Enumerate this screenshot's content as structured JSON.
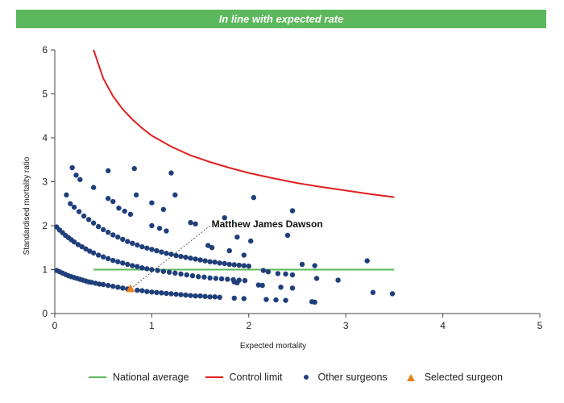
{
  "banner": {
    "text": "In line with expected rate",
    "color": "#5cb85c"
  },
  "chart_data": {
    "type": "scatter",
    "xlabel": "Expected mortality",
    "ylabel": "Standardised mortality ratio",
    "xlim": [
      0,
      5
    ],
    "ylim": [
      0,
      6
    ],
    "xticks": [
      "0",
      "1",
      "2",
      "3",
      "4",
      "5"
    ],
    "yticks": [
      "0",
      "1",
      "2",
      "3",
      "4",
      "5",
      "6"
    ],
    "grid": false,
    "legend_position": "bottom",
    "annotation": {
      "text": "Matthew James Dawson",
      "x": 1.6,
      "y": 2.0
    },
    "national_average": {
      "name": "National average",
      "color": "#5cb85c",
      "y": 1,
      "x": [
        0.4,
        3.5
      ]
    },
    "control_limit": {
      "name": "Control limit",
      "color": "#e02020",
      "points": [
        [
          0.4,
          6.0
        ],
        [
          0.5,
          5.35
        ],
        [
          0.6,
          4.95
        ],
        [
          0.7,
          4.65
        ],
        [
          0.8,
          4.42
        ],
        [
          0.9,
          4.22
        ],
        [
          1.0,
          4.05
        ],
        [
          1.2,
          3.8
        ],
        [
          1.4,
          3.6
        ],
        [
          1.6,
          3.45
        ],
        [
          1.8,
          3.32
        ],
        [
          2.0,
          3.2
        ],
        [
          2.25,
          3.08
        ],
        [
          2.5,
          2.97
        ],
        [
          2.75,
          2.88
        ],
        [
          3.0,
          2.8
        ],
        [
          3.25,
          2.72
        ],
        [
          3.5,
          2.65
        ]
      ]
    },
    "series": [
      {
        "name": "Other surgeons",
        "color": "#1f3f7a",
        "marker": "circle",
        "points": [
          [
            0.02,
            0.98
          ],
          [
            0.05,
            0.95
          ],
          [
            0.08,
            0.92
          ],
          [
            0.11,
            0.89
          ],
          [
            0.14,
            0.86
          ],
          [
            0.17,
            0.84
          ],
          [
            0.2,
            0.82
          ],
          [
            0.23,
            0.8
          ],
          [
            0.26,
            0.78
          ],
          [
            0.29,
            0.76
          ],
          [
            0.32,
            0.74
          ],
          [
            0.35,
            0.72
          ],
          [
            0.38,
            0.71
          ],
          [
            0.42,
            0.69
          ],
          [
            0.46,
            0.67
          ],
          [
            0.5,
            0.66
          ],
          [
            0.55,
            0.64
          ],
          [
            0.6,
            0.62
          ],
          [
            0.65,
            0.6
          ],
          [
            0.7,
            0.58
          ],
          [
            0.75,
            0.56
          ],
          [
            0.85,
            0.53
          ],
          [
            0.9,
            0.52
          ],
          [
            0.95,
            0.5
          ],
          [
            1.0,
            0.49
          ],
          [
            1.05,
            0.48
          ],
          [
            1.1,
            0.47
          ],
          [
            1.15,
            0.46
          ],
          [
            1.2,
            0.45
          ],
          [
            1.25,
            0.44
          ],
          [
            1.3,
            0.43
          ],
          [
            1.35,
            0.42
          ],
          [
            1.4,
            0.41
          ],
          [
            1.45,
            0.4
          ],
          [
            1.5,
            0.4
          ],
          [
            1.55,
            0.39
          ],
          [
            1.6,
            0.38
          ],
          [
            1.65,
            0.38
          ],
          [
            1.7,
            0.37
          ],
          [
            0.02,
            1.97
          ],
          [
            0.05,
            1.9
          ],
          [
            0.08,
            1.84
          ],
          [
            0.11,
            1.78
          ],
          [
            0.14,
            1.73
          ],
          [
            0.17,
            1.68
          ],
          [
            0.2,
            1.63
          ],
          [
            0.24,
            1.57
          ],
          [
            0.28,
            1.52
          ],
          [
            0.32,
            1.47
          ],
          [
            0.36,
            1.42
          ],
          [
            0.4,
            1.38
          ],
          [
            0.45,
            1.33
          ],
          [
            0.5,
            1.29
          ],
          [
            0.55,
            1.25
          ],
          [
            0.6,
            1.21
          ],
          [
            0.65,
            1.18
          ],
          [
            0.7,
            1.15
          ],
          [
            0.75,
            1.12
          ],
          [
            0.8,
            1.09
          ],
          [
            0.85,
            1.07
          ],
          [
            0.9,
            1.04
          ],
          [
            0.95,
            1.02
          ],
          [
            1.0,
            1.0
          ],
          [
            1.06,
            0.98
          ],
          [
            1.12,
            0.96
          ],
          [
            1.18,
            0.94
          ],
          [
            1.24,
            0.92
          ],
          [
            1.3,
            0.9
          ],
          [
            1.36,
            0.88
          ],
          [
            1.42,
            0.86
          ],
          [
            1.48,
            0.84
          ],
          [
            1.54,
            0.83
          ],
          [
            1.6,
            0.81
          ],
          [
            1.66,
            0.8
          ],
          [
            1.72,
            0.79
          ],
          [
            1.78,
            0.78
          ],
          [
            1.84,
            0.77
          ],
          [
            1.9,
            0.76
          ],
          [
            1.96,
            0.75
          ],
          [
            0.16,
            2.5
          ],
          [
            0.2,
            2.42
          ],
          [
            0.25,
            2.32
          ],
          [
            0.3,
            2.22
          ],
          [
            0.35,
            2.14
          ],
          [
            0.4,
            2.06
          ],
          [
            0.45,
            1.98
          ],
          [
            0.5,
            1.91
          ],
          [
            0.55,
            1.85
          ],
          [
            0.6,
            1.79
          ],
          [
            0.65,
            1.74
          ],
          [
            0.7,
            1.69
          ],
          [
            0.75,
            1.64
          ],
          [
            0.8,
            1.6
          ],
          [
            0.85,
            1.56
          ],
          [
            0.9,
            1.52
          ],
          [
            0.95,
            1.49
          ],
          [
            1.0,
            1.46
          ],
          [
            1.05,
            1.43
          ],
          [
            1.1,
            1.4
          ],
          [
            1.15,
            1.37
          ],
          [
            1.2,
            1.35
          ],
          [
            1.25,
            1.32
          ],
          [
            1.3,
            1.3
          ],
          [
            1.35,
            1.28
          ],
          [
            1.4,
            1.26
          ],
          [
            1.45,
            1.24
          ],
          [
            1.5,
            1.22
          ],
          [
            1.55,
            1.2
          ],
          [
            1.6,
            1.18
          ],
          [
            1.65,
            1.17
          ],
          [
            1.7,
            1.15
          ],
          [
            1.75,
            1.14
          ],
          [
            1.8,
            1.12
          ],
          [
            1.85,
            1.11
          ],
          [
            1.9,
            1.1
          ],
          [
            1.95,
            1.09
          ],
          [
            2.0,
            1.08
          ],
          [
            0.18,
            3.32
          ],
          [
            0.22,
            3.15
          ],
          [
            0.26,
            3.05
          ],
          [
            0.12,
            2.7
          ],
          [
            0.4,
            2.87
          ],
          [
            0.55,
            3.25
          ],
          [
            0.82,
            3.3
          ],
          [
            1.2,
            3.2
          ],
          [
            0.55,
            2.62
          ],
          [
            0.6,
            2.55
          ],
          [
            0.66,
            2.4
          ],
          [
            0.72,
            2.33
          ],
          [
            0.78,
            2.26
          ],
          [
            0.84,
            2.7
          ],
          [
            1.0,
            2.52
          ],
          [
            1.12,
            2.37
          ],
          [
            1.24,
            2.7
          ],
          [
            1.0,
            2.0
          ],
          [
            1.08,
            1.94
          ],
          [
            1.15,
            1.88
          ],
          [
            1.4,
            2.07
          ],
          [
            1.45,
            2.04
          ],
          [
            1.58,
            1.55
          ],
          [
            1.62,
            1.5
          ],
          [
            1.75,
            2.18
          ],
          [
            1.8,
            1.43
          ],
          [
            1.88,
            1.74
          ],
          [
            1.95,
            1.33
          ],
          [
            2.02,
            1.65
          ],
          [
            2.05,
            2.64
          ],
          [
            2.45,
            2.34
          ],
          [
            2.4,
            1.78
          ],
          [
            2.55,
            1.12
          ],
          [
            2.68,
            1.09
          ],
          [
            2.15,
            0.98
          ],
          [
            2.2,
            0.95
          ],
          [
            2.3,
            0.91
          ],
          [
            2.38,
            0.9
          ],
          [
            2.45,
            0.88
          ],
          [
            2.7,
            0.8
          ],
          [
            2.92,
            0.76
          ],
          [
            2.1,
            0.65
          ],
          [
            2.14,
            0.64
          ],
          [
            2.33,
            0.6
          ],
          [
            2.45,
            0.58
          ],
          [
            1.85,
            0.35
          ],
          [
            1.95,
            0.34
          ],
          [
            2.18,
            0.32
          ],
          [
            2.28,
            0.31
          ],
          [
            2.38,
            0.3
          ],
          [
            2.65,
            0.27
          ],
          [
            2.68,
            0.26
          ],
          [
            3.22,
            1.2
          ],
          [
            3.28,
            0.48
          ],
          [
            3.48,
            0.45
          ],
          [
            1.85,
            0.72
          ],
          [
            1.88,
            0.7
          ]
        ]
      },
      {
        "name": "Selected surgeon",
        "color": "#e8801e",
        "marker": "triangle",
        "points": [
          [
            0.78,
            0.56
          ]
        ]
      }
    ]
  }
}
